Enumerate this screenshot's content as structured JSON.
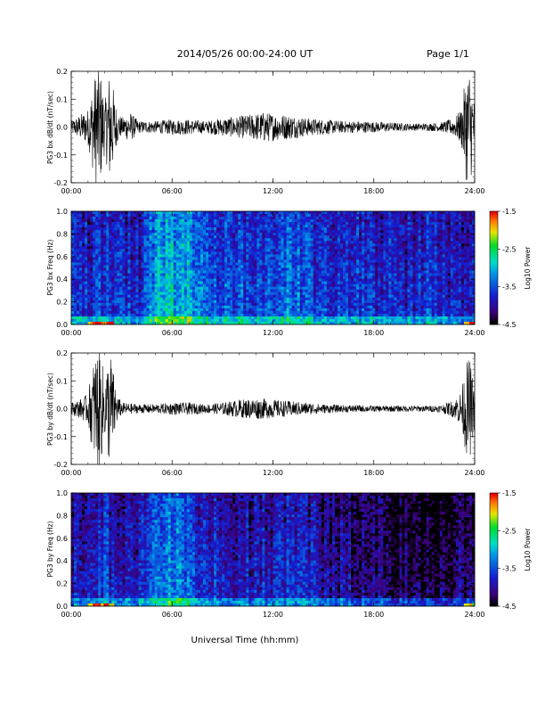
{
  "header": {
    "title": "2014/05/26  00:00-24:00 UT",
    "page": "Page 1/1"
  },
  "xlabel": "Universal Time (hh:mm)",
  "xticks": [
    "00:00",
    "06:00",
    "12:00",
    "18:00",
    "24:00"
  ],
  "chart_data": [
    {
      "type": "line",
      "ylabel": "PG3 bx dB/dt (nT/sec)",
      "xlim": [
        0,
        24
      ],
      "ylim": [
        -0.2,
        0.2
      ],
      "yticks": [
        "0.2",
        "0.1",
        "0.0",
        "-0.1",
        "-0.2"
      ],
      "envelope": {
        "hours": [
          0,
          0.5,
          1,
          1.2,
          1.5,
          1.7,
          2,
          2.3,
          2.7,
          3,
          3.5,
          4,
          5,
          6,
          7,
          8,
          9,
          10,
          11,
          11.5,
          12,
          13,
          14,
          15,
          16,
          17,
          18,
          19,
          20,
          21,
          22,
          22.8,
          23.2,
          23.5,
          23.7,
          24
        ],
        "amplitude": [
          0.02,
          0.04,
          0.06,
          0.12,
          0.2,
          0.2,
          0.08,
          0.2,
          0.06,
          0.03,
          0.05,
          0.02,
          0.02,
          0.025,
          0.025,
          0.02,
          0.03,
          0.035,
          0.045,
          0.05,
          0.045,
          0.04,
          0.03,
          0.025,
          0.02,
          0.02,
          0.018,
          0.015,
          0.012,
          0.012,
          0.015,
          0.03,
          0.06,
          0.18,
          0.2,
          0.08
        ]
      }
    },
    {
      "type": "heatmap",
      "ylabel": "PG3 bx Freq (Hz)",
      "ylim": [
        0,
        1
      ],
      "yticks": [
        "1.0",
        "0.8",
        "0.6",
        "0.4",
        "0.2",
        "0.0"
      ],
      "colorbar": {
        "label": "Log10 Power",
        "ticks": [
          "-1.5",
          "-2.5",
          "-3.5",
          "-4.5"
        ],
        "range": [
          -4.5,
          -1.5
        ]
      },
      "intensity_by_hour": {
        "hours": [
          0,
          1,
          2,
          3,
          4,
          4.5,
          5,
          6,
          7,
          8,
          9,
          10,
          11,
          12,
          13,
          14,
          15,
          16,
          17,
          18,
          19,
          20,
          21,
          22,
          23,
          24
        ],
        "log_power": [
          -3.6,
          -3.7,
          -3.5,
          -3.6,
          -3.8,
          -3.4,
          -3.0,
          -2.9,
          -3.0,
          -3.3,
          -3.4,
          -3.5,
          -3.5,
          -3.5,
          -3.3,
          -3.4,
          -3.6,
          -3.6,
          -3.5,
          -3.7,
          -3.6,
          -3.7,
          -3.6,
          -3.7,
          -3.8,
          -3.7
        ]
      }
    },
    {
      "type": "line",
      "ylabel": "PG3 by dB/dt (nT/sec)",
      "xlim": [
        0,
        24
      ],
      "ylim": [
        -0.2,
        0.2
      ],
      "yticks": [
        "0.2",
        "0.1",
        "0.0",
        "-0.1",
        "-0.2"
      ],
      "envelope": {
        "hours": [
          0,
          0.5,
          1,
          1.2,
          1.5,
          1.7,
          2,
          2.3,
          2.7,
          3,
          4,
          5,
          6,
          7,
          8,
          9,
          10,
          11,
          12,
          13,
          14,
          15,
          16,
          17,
          18,
          19,
          20,
          21,
          22,
          22.8,
          23.2,
          23.5,
          23.7,
          24
        ],
        "amplitude": [
          0.02,
          0.03,
          0.05,
          0.12,
          0.2,
          0.2,
          0.1,
          0.2,
          0.05,
          0.02,
          0.015,
          0.015,
          0.02,
          0.02,
          0.015,
          0.02,
          0.03,
          0.035,
          0.03,
          0.025,
          0.02,
          0.015,
          0.012,
          0.012,
          0.01,
          0.01,
          0.01,
          0.01,
          0.012,
          0.03,
          0.06,
          0.15,
          0.17,
          0.06
        ]
      }
    },
    {
      "type": "heatmap",
      "ylabel": "PG3 by Freq (Hz)",
      "ylim": [
        0,
        1
      ],
      "yticks": [
        "1.0",
        "0.8",
        "0.6",
        "0.4",
        "0.2",
        "0.0"
      ],
      "colorbar": {
        "label": "Log10 Power",
        "ticks": [
          "-1.5",
          "-2.5",
          "-3.5",
          "-4.5"
        ],
        "range": [
          -4.5,
          -1.5
        ]
      },
      "intensity_by_hour": {
        "hours": [
          0,
          1,
          2,
          3,
          4,
          4.5,
          5,
          6,
          7,
          8,
          9,
          10,
          11,
          12,
          13,
          14,
          15,
          16,
          17,
          18,
          19,
          20,
          21,
          22,
          23,
          24
        ],
        "log_power": [
          -3.9,
          -3.7,
          -3.6,
          -3.8,
          -3.9,
          -3.6,
          -3.3,
          -3.2,
          -3.4,
          -3.6,
          -3.7,
          -3.8,
          -3.8,
          -3.8,
          -3.6,
          -3.8,
          -3.9,
          -4.0,
          -4.0,
          -4.1,
          -4.2,
          -4.2,
          -4.3,
          -4.2,
          -4.2,
          -4.0
        ]
      }
    }
  ]
}
